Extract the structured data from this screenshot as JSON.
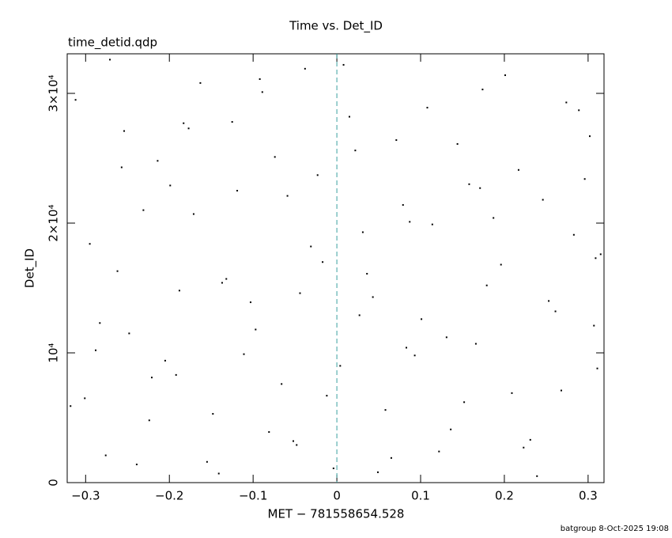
{
  "chart_data": {
    "type": "scatter",
    "title": "Time vs. Det_ID",
    "subtitle": "time_detid.qdp",
    "x_label": "MET − 781558654.528",
    "y_label": "Det_ID",
    "footer": "batgroup  8-Oct-2025 19:08",
    "color": "#000000",
    "vline": {
      "value": 0,
      "color": "#3aa0a0"
    },
    "xlim": [
      -0.322,
      0.319
    ],
    "ylim": [
      0,
      33050
    ],
    "xticks": [
      {
        "value": -0.3,
        "label": "−0.3"
      },
      {
        "value": -0.2,
        "label": "−0.2"
      },
      {
        "value": -0.1,
        "label": "−0.1"
      },
      0,
      0.1,
      0.2,
      0.3
    ],
    "yticks": [
      0,
      {
        "value": 10000,
        "label": "10⁴"
      },
      {
        "value": 20000,
        "label": "2×10⁴"
      },
      {
        "value": 30000,
        "label": "3×10⁴"
      }
    ],
    "x": [
      -0.301,
      -0.276,
      -0.254,
      -0.231,
      -0.205,
      -0.188,
      -0.163,
      -0.141,
      -0.119,
      -0.097,
      -0.074,
      -0.052,
      -0.031,
      -0.012,
      0.008,
      0.027,
      0.049,
      0.071,
      0.093,
      0.114,
      0.136,
      0.158,
      0.179,
      0.201,
      0.223,
      0.246,
      0.268,
      0.289,
      0.307,
      0.315,
      -0.312,
      -0.288,
      -0.262,
      -0.239,
      -0.214,
      -0.192,
      -0.171,
      -0.148,
      -0.125,
      -0.103,
      -0.081,
      -0.059,
      -0.038,
      -0.017,
      0.004,
      0.022,
      0.043,
      0.065,
      0.087,
      0.108,
      0.131,
      0.152,
      0.174,
      0.196,
      0.217,
      0.239,
      0.261,
      0.283,
      0.302,
      0.311,
      -0.295,
      -0.271,
      -0.248,
      -0.224,
      -0.199,
      -0.177,
      -0.155,
      -0.132,
      -0.111,
      -0.089,
      -0.066,
      -0.044,
      -0.023,
      -0.004,
      0.015,
      0.036,
      0.058,
      0.079,
      0.101,
      0.122,
      0.144,
      0.166,
      0.187,
      0.209,
      0.231,
      0.253,
      0.274,
      0.296,
      0.309,
      -0.318,
      -0.283,
      -0.257,
      -0.221,
      -0.183,
      -0.137,
      -0.092,
      -0.048,
      0.031,
      0.083,
      0.171
    ],
    "values": [
      6500,
      2100,
      27100,
      21000,
      9400,
      14800,
      30800,
      700,
      22500,
      11800,
      25100,
      3200,
      18200,
      6700,
      32200,
      12900,
      800,
      26400,
      9800,
      19900,
      4100,
      23000,
      15200,
      31400,
      2700,
      21800,
      7100,
      28700,
      12100,
      17600,
      29500,
      10200,
      16300,
      1400,
      24800,
      8300,
      20700,
      5300,
      27800,
      13900,
      3900,
      22100,
      31900,
      17000,
      9000,
      25600,
      14300,
      1900,
      20100,
      28900,
      11200,
      6200,
      30300,
      16800,
      24100,
      500,
      13200,
      19100,
      26700,
      8800,
      18400,
      32600,
      11500,
      4800,
      22900,
      27300,
      1600,
      15700,
      9900,
      30100,
      7600,
      14600,
      23700,
      1100,
      28200,
      16100,
      5600,
      21400,
      12600,
      2400,
      26100,
      10700,
      20400,
      6900,
      3300,
      14000,
      29300,
      23400,
      17300,
      5900,
      12300,
      24300,
      8100,
      27700,
      15400,
      31100,
      2900,
      19300,
      10400,
      22700
    ]
  }
}
